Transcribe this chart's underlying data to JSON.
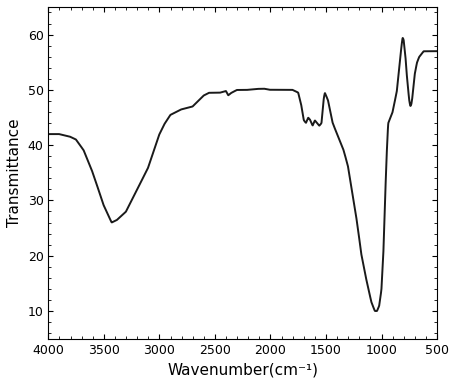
{
  "xlabel": "Wavenumber(cm⁻¹)",
  "ylabel": "Transmittance",
  "xlim": [
    4000,
    500
  ],
  "ylim": [
    5,
    65
  ],
  "yticks": [
    10,
    20,
    30,
    40,
    50,
    60
  ],
  "xticks": [
    4000,
    3500,
    3000,
    2500,
    2000,
    1500,
    1000,
    500
  ],
  "line_color": "#1a1a1a",
  "line_width": 1.4,
  "background_color": "#ffffff",
  "keypoints": [
    [
      4000,
      42
    ],
    [
      3900,
      42
    ],
    [
      3800,
      41.5
    ],
    [
      3750,
      41
    ],
    [
      3680,
      39
    ],
    [
      3600,
      35
    ],
    [
      3500,
      29
    ],
    [
      3430,
      26
    ],
    [
      3380,
      26.5
    ],
    [
      3300,
      28
    ],
    [
      3200,
      32
    ],
    [
      3100,
      36
    ],
    [
      3050,
      39
    ],
    [
      3000,
      42
    ],
    [
      2950,
      44
    ],
    [
      2900,
      45.5
    ],
    [
      2800,
      46.5
    ],
    [
      2700,
      47
    ],
    [
      2650,
      48
    ],
    [
      2600,
      49
    ],
    [
      2550,
      49.5
    ],
    [
      2500,
      49.5
    ],
    [
      2450,
      49.5
    ],
    [
      2400,
      49.8
    ],
    [
      2380,
      49
    ],
    [
      2350,
      49.5
    ],
    [
      2300,
      50
    ],
    [
      2200,
      50
    ],
    [
      2100,
      50.2
    ],
    [
      2050,
      50.2
    ],
    [
      2000,
      50
    ],
    [
      1950,
      50
    ],
    [
      1900,
      50
    ],
    [
      1850,
      50
    ],
    [
      1800,
      50
    ],
    [
      1750,
      49.5
    ],
    [
      1720,
      47
    ],
    [
      1700,
      44.5
    ],
    [
      1680,
      44
    ],
    [
      1660,
      45
    ],
    [
      1640,
      44.5
    ],
    [
      1620,
      43.5
    ],
    [
      1600,
      44.5
    ],
    [
      1580,
      44
    ],
    [
      1560,
      43.5
    ],
    [
      1540,
      44
    ],
    [
      1520,
      48.5
    ],
    [
      1510,
      49.5
    ],
    [
      1500,
      49
    ],
    [
      1480,
      48
    ],
    [
      1460,
      46
    ],
    [
      1440,
      44
    ],
    [
      1420,
      43
    ],
    [
      1400,
      42
    ],
    [
      1370,
      40.5
    ],
    [
      1340,
      39
    ],
    [
      1300,
      36
    ],
    [
      1260,
      31
    ],
    [
      1220,
      26
    ],
    [
      1180,
      20
    ],
    [
      1130,
      15
    ],
    [
      1090,
      11.5
    ],
    [
      1060,
      10
    ],
    [
      1040,
      10
    ],
    [
      1020,
      11
    ],
    [
      1000,
      14
    ],
    [
      980,
      22
    ],
    [
      960,
      35
    ],
    [
      950,
      40
    ],
    [
      940,
      44
    ],
    [
      920,
      45
    ],
    [
      900,
      46
    ],
    [
      880,
      48
    ],
    [
      860,
      50
    ],
    [
      840,
      54
    ],
    [
      820,
      58
    ],
    [
      810,
      59.5
    ],
    [
      800,
      59
    ],
    [
      790,
      57
    ],
    [
      780,
      55
    ],
    [
      770,
      52
    ],
    [
      760,
      50
    ],
    [
      750,
      48
    ],
    [
      740,
      47
    ],
    [
      730,
      47.5
    ],
    [
      720,
      49
    ],
    [
      710,
      51
    ],
    [
      700,
      53
    ],
    [
      690,
      54
    ],
    [
      680,
      55
    ],
    [
      660,
      56
    ],
    [
      640,
      56.5
    ],
    [
      620,
      57
    ],
    [
      600,
      57
    ],
    [
      580,
      57
    ],
    [
      560,
      57
    ],
    [
      540,
      57
    ],
    [
      520,
      57
    ],
    [
      500,
      57
    ]
  ]
}
